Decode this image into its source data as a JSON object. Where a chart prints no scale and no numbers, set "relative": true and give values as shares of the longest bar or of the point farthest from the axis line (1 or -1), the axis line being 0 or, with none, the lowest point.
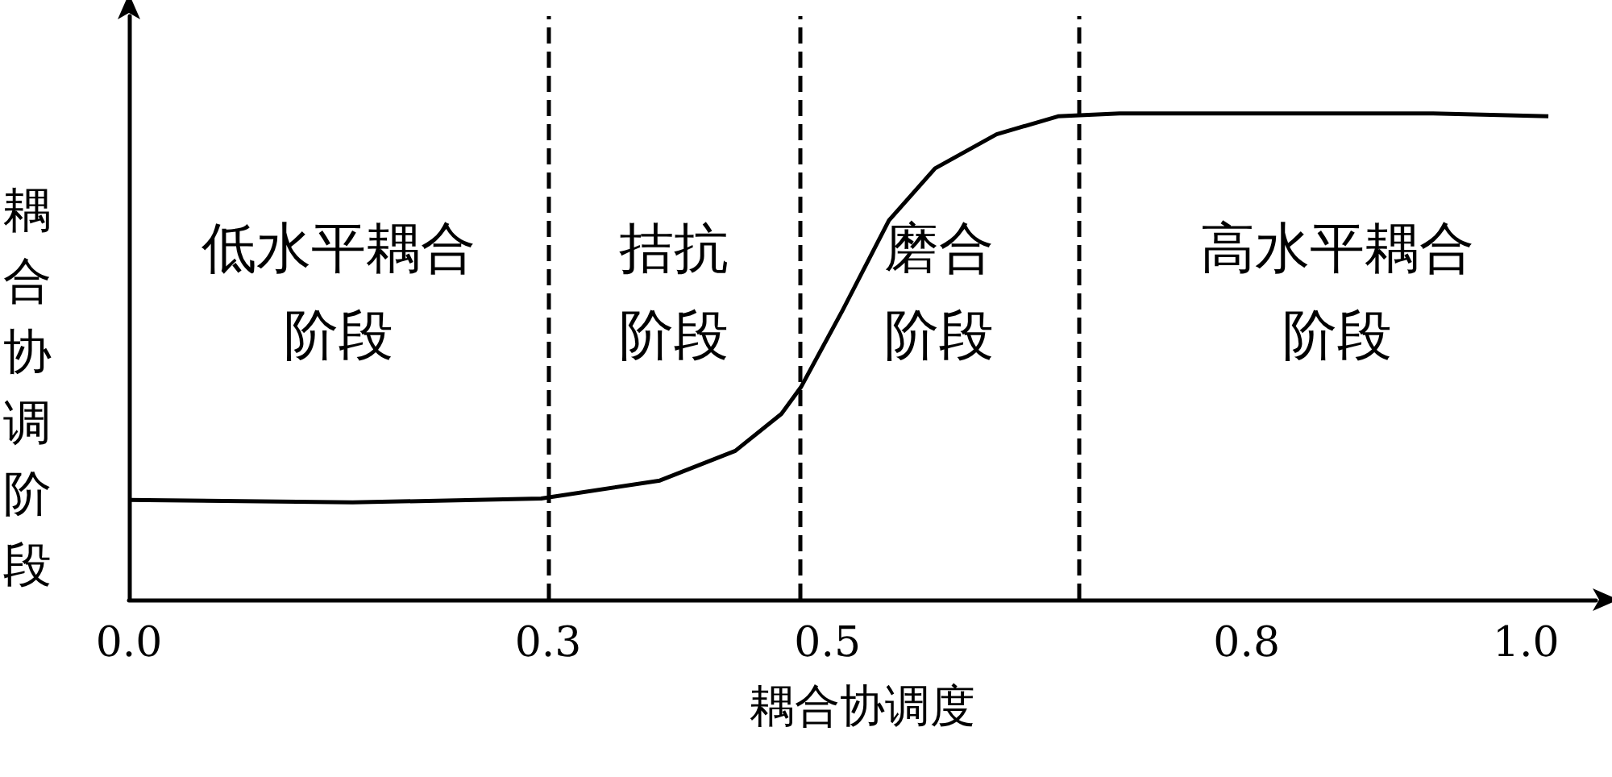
{
  "chart_data": {
    "type": "line",
    "relative": true,
    "xlabel": "耦合协调度",
    "ylabel": "耦合协调阶段",
    "color": "#000000",
    "marker": "none",
    "line_style": "solid",
    "grid": false,
    "xlim": [
      0,
      1.05
    ],
    "xticks": [
      {
        "value": 0,
        "label": "0.0"
      },
      0.3,
      0.5,
      0.8,
      {
        "value": 1,
        "label": "1.0"
      }
    ],
    "x": [
      0,
      0.16,
      0.295,
      0.38,
      0.434,
      0.467,
      0.481,
      0.511,
      0.544,
      0.577,
      0.621,
      0.665,
      0.709,
      0.93,
      1.016
    ],
    "values": [
      0.205,
      0.2,
      0.208,
      0.245,
      0.306,
      0.382,
      0.437,
      0.596,
      0.78,
      0.887,
      0.957,
      0.994,
      1.0,
      1.0,
      0.994
    ],
    "ref_lines": [
      {
        "axis": "x",
        "value": 0.3,
        "line_style": "dashed"
      },
      {
        "axis": "x",
        "value": 0.48,
        "line_style": "dashed"
      },
      {
        "axis": "x",
        "value": 0.68,
        "line_style": "dashed"
      }
    ],
    "annotations": [
      "低水平耦合阶段",
      "拮抗阶段",
      "磨合阶段",
      "高水平耦合阶段"
    ]
  }
}
